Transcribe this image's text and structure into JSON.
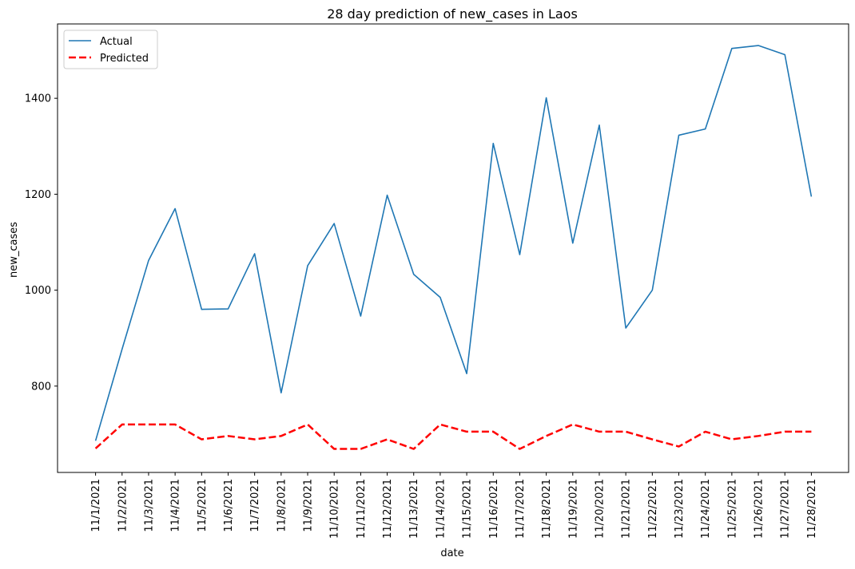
{
  "chart_data": {
    "type": "line",
    "title": "28 day prediction of new_cases in Laos",
    "xlabel": "date",
    "ylabel": "new_cases",
    "x": [
      "11/1/2021",
      "11/2/2021",
      "11/3/2021",
      "11/4/2021",
      "11/5/2021",
      "11/6/2021",
      "11/7/2021",
      "11/8/2021",
      "11/9/2021",
      "11/10/2021",
      "11/11/2021",
      "11/12/2021",
      "11/13/2021",
      "11/14/2021",
      "11/15/2021",
      "11/16/2021",
      "11/17/2021",
      "11/18/2021",
      "11/19/2021",
      "11/20/2021",
      "11/21/2021",
      "11/22/2021",
      "11/23/2021",
      "11/24/2021",
      "11/25/2021",
      "11/26/2021",
      "11/27/2021",
      "11/28/2021"
    ],
    "yticks": [
      800,
      1000,
      1200,
      1400
    ],
    "ylim": [
      620,
      1555
    ],
    "grid": false,
    "legend": "top-left",
    "series": [
      {
        "name": "Actual",
        "color": "#1f77b4",
        "style": "solid",
        "values": [
          686,
          877,
          1062,
          1170,
          960,
          961,
          1076,
          786,
          1051,
          1139,
          946,
          1198,
          1033,
          985,
          826,
          1306,
          1074,
          1401,
          1098,
          1344,
          921,
          1000,
          1323,
          1336,
          1504,
          1510,
          1491,
          1195
        ]
      },
      {
        "name": "Predicted",
        "color": "#ff0000",
        "style": "dashed",
        "values": [
          670,
          720,
          720,
          720,
          689,
          696,
          689,
          696,
          720,
          669,
          669,
          689,
          669,
          720,
          705,
          705,
          669,
          696,
          720,
          705,
          705,
          689,
          674,
          705,
          689,
          696,
          705,
          705
        ]
      }
    ]
  }
}
